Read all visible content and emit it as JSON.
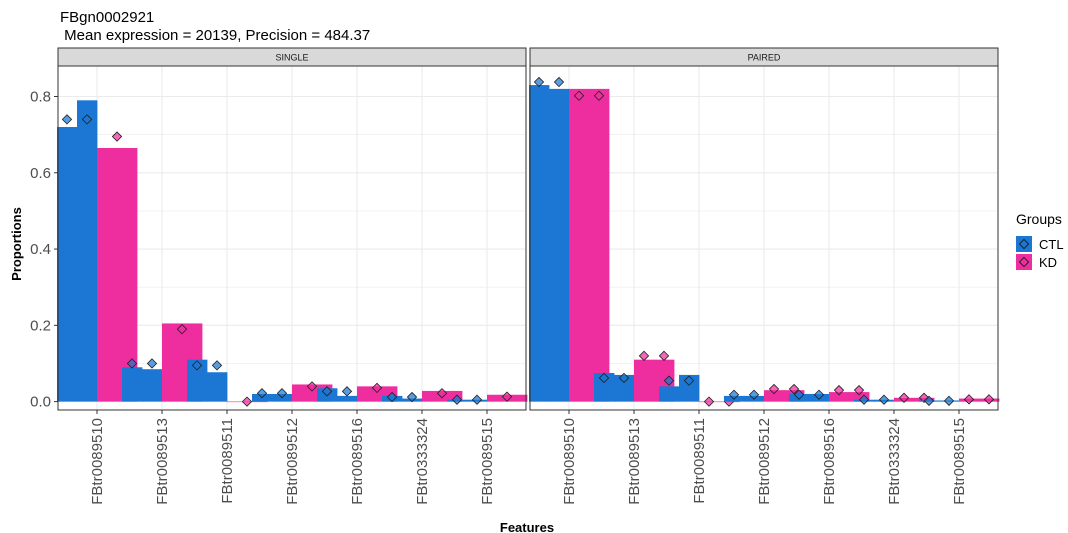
{
  "chart_data": {
    "type": "bar",
    "title": "FBgn0002921",
    "subtitle": " Mean expression = 20139, Precision = 484.37",
    "xlabel": "Features",
    "ylabel": "Proportions",
    "ylim": [
      -0.022,
      0.88
    ],
    "yticks": [
      0.0,
      0.2,
      0.4,
      0.6,
      0.8
    ],
    "ytick_labels": [
      "0.0",
      "0.2",
      "0.4",
      "0.6",
      "0.8"
    ],
    "categories": [
      "FBtr0089510",
      "FBtr0089513",
      "FBtr0089511",
      "FBtr0089512",
      "FBtr0089516",
      "FBtr0333324",
      "FBtr0089515"
    ],
    "grid": true,
    "legend": {
      "title": "Groups",
      "position": "right",
      "entries": [
        {
          "label": "CTL",
          "color": "#1b77d3"
        },
        {
          "label": "KD",
          "color": "#ee2e9f"
        }
      ]
    },
    "panels": [
      {
        "name": "SINGLE",
        "groups": {
          "CTL": {
            "bars": [
              [
                0.72,
                0.79
              ],
              [
                0.09,
                0.085
              ],
              [
                0.11,
                0.077
              ],
              [
                0.02,
                0.02
              ],
              [
                0.035,
                0.015
              ],
              [
                0.015,
                0.008
              ],
              [
                0.005,
                0.005
              ]
            ],
            "points": [
              [
                0.74,
                0.74
              ],
              [
                0.1,
                0.1
              ],
              [
                0.095,
                0.095
              ],
              [
                0.022,
                0.022
              ],
              [
                0.027,
                0.027
              ],
              [
                0.012,
                0.012
              ],
              [
                0.005,
                0.005
              ]
            ]
          },
          "KD": {
            "bars": [
              [
                0.665
              ],
              [
                0.205
              ],
              [
                0.0
              ],
              [
                0.045
              ],
              [
                0.04
              ],
              [
                0.028
              ],
              [
                0.018
              ]
            ],
            "points": [
              [
                0.695
              ],
              [
                0.19
              ],
              [
                0.0
              ],
              [
                0.04
              ],
              [
                0.036
              ],
              [
                0.022
              ],
              [
                0.013
              ]
            ]
          }
        }
      },
      {
        "name": "PAIRED",
        "groups": {
          "CTL": {
            "bars": [
              [
                0.83,
                0.82
              ],
              [
                0.075,
                0.07
              ],
              [
                0.04,
                0.07
              ],
              [
                0.015,
                0.015
              ],
              [
                0.02,
                0.02
              ],
              [
                0.005,
                0.005
              ],
              [
                0.003,
                0.003
              ]
            ],
            "points": [
              [
                0.838,
                0.838
              ],
              [
                0.062,
                0.062
              ],
              [
                0.055,
                0.055
              ],
              [
                0.018,
                0.018
              ],
              [
                0.018,
                0.018
              ],
              [
                0.005,
                0.005
              ],
              [
                0.002,
                0.002
              ]
            ]
          },
          "KD": {
            "bars": [
              [
                0.82,
                0.82
              ],
              [
                0.11,
                0.11
              ],
              [
                0.0,
                0.0
              ],
              [
                0.03,
                0.03
              ],
              [
                0.025,
                0.025
              ],
              [
                0.01,
                0.01
              ],
              [
                0.008,
                0.008
              ]
            ],
            "points": [
              [
                0.802,
                0.802
              ],
              [
                0.12,
                0.12
              ],
              [
                0.0,
                0.0
              ],
              [
                0.033,
                0.033
              ],
              [
                0.03,
                0.03
              ],
              [
                0.01,
                0.01
              ],
              [
                0.006,
                0.006
              ]
            ]
          }
        }
      }
    ]
  }
}
